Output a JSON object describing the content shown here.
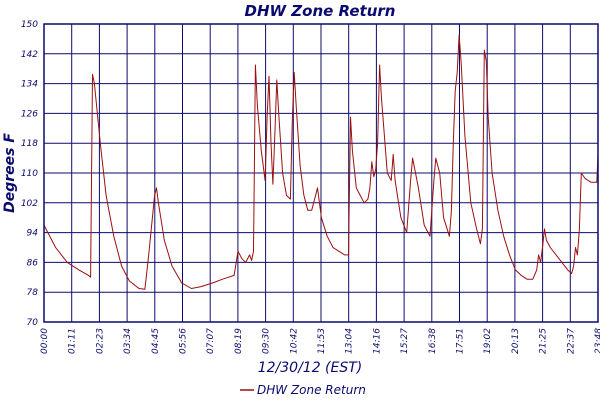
{
  "colors": {
    "frame": "#0b0b6e",
    "grid": "#0b0b6e",
    "text": "#0b0b6e",
    "series": "#9b0f0f",
    "background": "#ffffff"
  },
  "chart_data": {
    "type": "line",
    "title": "DHW Zone Return",
    "xlabel": "12/30/12 (EST)",
    "ylabel": "Degrees F",
    "ylim": [
      70,
      150
    ],
    "xlim": [
      "00:00",
      "23:48"
    ],
    "grid": true,
    "legend_position": "bottom-center",
    "y_ticks": [
      "70",
      "78",
      "86",
      "94",
      "102",
      "110",
      "118",
      "126",
      "134",
      "142",
      "150"
    ],
    "x_ticks": [
      "00:00",
      "01:11",
      "02:23",
      "03:34",
      "04:45",
      "05:56",
      "07:07",
      "08:19",
      "09:30",
      "10:42",
      "11:53",
      "13:04",
      "14:16",
      "15:27",
      "16:38",
      "17:51",
      "19:02",
      "20:13",
      "21:25",
      "22:37",
      "23:48"
    ],
    "series": [
      {
        "name": "DHW Zone Return",
        "points": [
          [
            "00:00",
            96
          ],
          [
            "00:30",
            90
          ],
          [
            "01:00",
            86
          ],
          [
            "01:30",
            84
          ],
          [
            "01:55",
            82.5
          ],
          [
            "02:00",
            82
          ],
          [
            "02:05",
            136.5
          ],
          [
            "02:10",
            134
          ],
          [
            "02:25",
            118
          ],
          [
            "02:40",
            104
          ],
          [
            "03:00",
            93
          ],
          [
            "03:20",
            85
          ],
          [
            "03:40",
            81
          ],
          [
            "04:05",
            79
          ],
          [
            "04:20",
            78.8
          ],
          [
            "04:30",
            88
          ],
          [
            "04:45",
            104
          ],
          [
            "04:50",
            106
          ],
          [
            "04:55",
            102
          ],
          [
            "05:10",
            92
          ],
          [
            "05:30",
            85
          ],
          [
            "05:55",
            80.5
          ],
          [
            "06:20",
            79
          ],
          [
            "06:45",
            79.5
          ],
          [
            "07:15",
            80.5
          ],
          [
            "07:40",
            81.5
          ],
          [
            "08:10",
            82.5
          ],
          [
            "08:20",
            89
          ],
          [
            "08:30",
            87
          ],
          [
            "08:40",
            86
          ],
          [
            "08:50",
            88
          ],
          [
            "08:55",
            86.5
          ],
          [
            "09:00",
            89
          ],
          [
            "09:05",
            139
          ],
          [
            "09:10",
            128
          ],
          [
            "09:20",
            116
          ],
          [
            "09:30",
            108
          ],
          [
            "09:35",
            125
          ],
          [
            "09:40",
            136
          ],
          [
            "09:45",
            118
          ],
          [
            "09:50",
            107
          ],
          [
            "09:55",
            120
          ],
          [
            "10:00",
            135
          ],
          [
            "10:05",
            126
          ],
          [
            "10:15",
            110
          ],
          [
            "10:25",
            104
          ],
          [
            "10:35",
            103
          ],
          [
            "10:40",
            124
          ],
          [
            "10:45",
            137
          ],
          [
            "10:50",
            128
          ],
          [
            "11:00",
            112
          ],
          [
            "11:10",
            104
          ],
          [
            "11:20",
            100
          ],
          [
            "11:30",
            100
          ],
          [
            "11:40",
            104
          ],
          [
            "11:45",
            106
          ],
          [
            "11:55",
            98
          ],
          [
            "12:10",
            93
          ],
          [
            "12:25",
            90
          ],
          [
            "12:40",
            89
          ],
          [
            "12:55",
            88
          ],
          [
            "13:05",
            88
          ],
          [
            "13:10",
            125
          ],
          [
            "13:15",
            116
          ],
          [
            "13:25",
            106
          ],
          [
            "13:35",
            104
          ],
          [
            "13:45",
            102
          ],
          [
            "13:55",
            103
          ],
          [
            "14:00",
            106
          ],
          [
            "14:05",
            113
          ],
          [
            "14:10",
            109
          ],
          [
            "14:15",
            111
          ],
          [
            "14:20",
            118
          ],
          [
            "14:25",
            139
          ],
          [
            "14:30",
            130
          ],
          [
            "14:45",
            110
          ],
          [
            "14:55",
            108
          ],
          [
            "15:00",
            115
          ],
          [
            "15:05",
            108
          ],
          [
            "15:20",
            98
          ],
          [
            "15:35",
            94
          ],
          [
            "15:45",
            108
          ],
          [
            "15:50",
            114
          ],
          [
            "16:05",
            106
          ],
          [
            "16:20",
            96
          ],
          [
            "16:35",
            93
          ],
          [
            "16:45",
            108
          ],
          [
            "16:50",
            114
          ],
          [
            "17:00",
            110
          ],
          [
            "17:10",
            98
          ],
          [
            "17:25",
            93
          ],
          [
            "17:30",
            100
          ],
          [
            "17:35",
            118
          ],
          [
            "17:40",
            132
          ],
          [
            "17:45",
            137
          ],
          [
            "17:50",
            147
          ],
          [
            "17:55",
            140
          ],
          [
            "18:05",
            120
          ],
          [
            "18:20",
            102
          ],
          [
            "18:35",
            95
          ],
          [
            "18:45",
            91
          ],
          [
            "18:50",
            95
          ],
          [
            "18:55",
            143
          ],
          [
            "19:00",
            140
          ],
          [
            "19:05",
            125
          ],
          [
            "19:15",
            110
          ],
          [
            "19:30",
            100
          ],
          [
            "19:45",
            93
          ],
          [
            "20:00",
            88
          ],
          [
            "20:15",
            84
          ],
          [
            "20:30",
            82.5
          ],
          [
            "20:45",
            81.5
          ],
          [
            "21:00",
            81.5
          ],
          [
            "21:10",
            84
          ],
          [
            "21:15",
            88
          ],
          [
            "21:20",
            86
          ],
          [
            "21:25",
            90
          ],
          [
            "21:30",
            95
          ],
          [
            "21:35",
            92
          ],
          [
            "21:45",
            90
          ],
          [
            "22:00",
            88
          ],
          [
            "22:15",
            86
          ],
          [
            "22:30",
            84
          ],
          [
            "22:40",
            83
          ],
          [
            "22:45",
            85
          ],
          [
            "22:50",
            90
          ],
          [
            "22:55",
            88
          ],
          [
            "23:00",
            95
          ],
          [
            "23:05",
            110
          ],
          [
            "23:15",
            108.5
          ],
          [
            "23:30",
            107.5
          ],
          [
            "23:40",
            107.5
          ],
          [
            "23:45",
            107.5
          ],
          [
            "23:48",
            115
          ]
        ]
      }
    ]
  }
}
